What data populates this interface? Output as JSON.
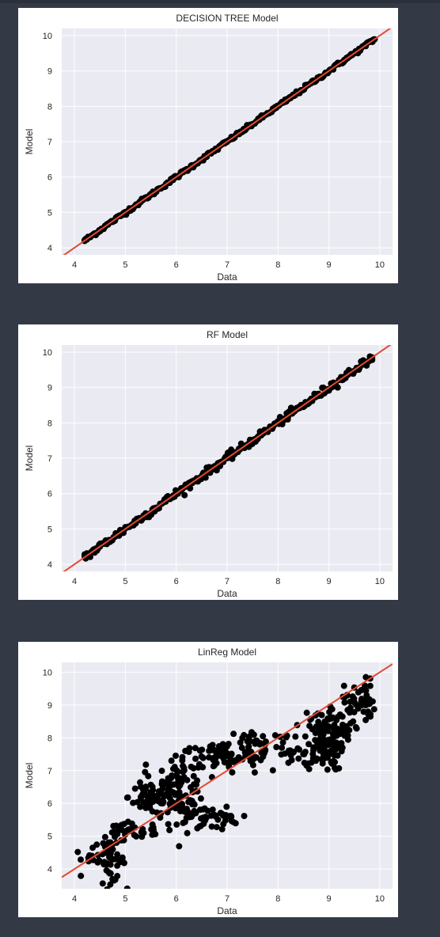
{
  "chart_data": [
    {
      "type": "scatter",
      "title": "DECISION TREE Model",
      "xlabel": "Data",
      "ylabel": "Model",
      "xlim": [
        3.75,
        10.25
      ],
      "ylim": [
        3.8,
        10.2
      ],
      "xticks": [
        "4",
        "5",
        "6",
        "7",
        "8",
        "9",
        "10"
      ],
      "yticks": [
        "4",
        "5",
        "6",
        "7",
        "8",
        "9",
        "10"
      ],
      "grid": true,
      "reference_line": {
        "slope": 1,
        "intercept": 0,
        "color": "#e24a33"
      },
      "point_color": "#000000",
      "segments": [
        {
          "x0": 4.2,
          "x1": 9.9,
          "spread": 0.03,
          "n": 260
        }
      ],
      "series": [
        {
          "x": [
            4.2,
            4.4,
            4.6,
            4.8,
            5.0,
            5.2,
            5.5,
            5.8,
            6.0,
            6.2,
            6.5,
            6.8,
            7.0,
            7.3,
            7.6,
            7.9,
            8.1,
            8.4,
            8.7,
            9.0,
            9.3,
            9.6,
            9.85
          ],
          "y": [
            4.22,
            4.38,
            4.62,
            4.79,
            5.01,
            5.2,
            5.49,
            5.81,
            6.0,
            6.21,
            6.49,
            6.8,
            7.01,
            7.29,
            7.6,
            7.9,
            8.1,
            8.41,
            8.69,
            9.0,
            9.31,
            9.6,
            9.86
          ]
        }
      ]
    },
    {
      "type": "scatter",
      "title": "RF Model",
      "xlabel": "Data",
      "ylabel": "Model",
      "xlim": [
        3.75,
        10.25
      ],
      "ylim": [
        3.8,
        10.2
      ],
      "xticks": [
        "4",
        "5",
        "6",
        "7",
        "8",
        "9",
        "10"
      ],
      "yticks": [
        "4",
        "5",
        "6",
        "7",
        "8",
        "9",
        "10"
      ],
      "grid": true,
      "reference_line": {
        "slope": 1,
        "intercept": 0,
        "color": "#e24a33"
      },
      "point_color": "#000000",
      "segments": [
        {
          "x0": 4.2,
          "x1": 9.85,
          "spread": 0.06,
          "n": 260
        }
      ],
      "series": [
        {
          "x": [
            4.2,
            4.5,
            4.8,
            5.0,
            5.3,
            5.6,
            5.9,
            6.2,
            6.5,
            6.8,
            7.0,
            7.3,
            7.6,
            7.9,
            8.2,
            8.5,
            8.8,
            9.0,
            9.3,
            9.6,
            9.85
          ],
          "y": [
            4.28,
            4.5,
            4.78,
            5.05,
            5.28,
            5.58,
            5.88,
            6.2,
            6.48,
            6.75,
            7.0,
            7.3,
            7.6,
            7.88,
            8.18,
            8.45,
            8.82,
            8.95,
            9.28,
            9.55,
            9.78
          ]
        }
      ]
    },
    {
      "type": "scatter",
      "title": "LinReg Model",
      "xlabel": "Data",
      "ylabel": "Model",
      "xlim": [
        3.75,
        10.25
      ],
      "ylim": [
        3.4,
        10.3
      ],
      "xticks": [
        "4",
        "5",
        "6",
        "7",
        "8",
        "9",
        "10"
      ],
      "yticks": [
        "4",
        "5",
        "6",
        "7",
        "8",
        "9",
        "10"
      ],
      "grid": true,
      "reference_line": {
        "slope": 1,
        "intercept": 0,
        "color": "#e24a33"
      },
      "point_color": "#000000",
      "clusters": [
        {
          "cx": 4.25,
          "cy": 4.3,
          "sx": 0.12,
          "sy": 0.15,
          "n": 10
        },
        {
          "cx": 4.7,
          "cy": 4.3,
          "sx": 0.15,
          "sy": 0.35,
          "n": 45
        },
        {
          "cx": 5.0,
          "cy": 5.05,
          "sx": 0.2,
          "sy": 0.2,
          "n": 20
        },
        {
          "cx": 5.5,
          "cy": 6.2,
          "sx": 0.22,
          "sy": 0.3,
          "n": 60
        },
        {
          "cx": 5.3,
          "cy": 5.1,
          "sx": 0.35,
          "sy": 0.15,
          "n": 14
        },
        {
          "cx": 6.1,
          "cy": 6.5,
          "sx": 0.25,
          "sy": 0.45,
          "n": 90
        },
        {
          "cx": 6.2,
          "cy": 5.7,
          "sx": 0.25,
          "sy": 0.25,
          "n": 40
        },
        {
          "cx": 6.75,
          "cy": 5.55,
          "sx": 0.25,
          "sy": 0.15,
          "n": 30
        },
        {
          "cx": 6.85,
          "cy": 7.4,
          "sx": 0.35,
          "sy": 0.25,
          "n": 60
        },
        {
          "cx": 7.6,
          "cy": 7.8,
          "sx": 0.3,
          "sy": 0.3,
          "n": 40
        },
        {
          "cx": 8.2,
          "cy": 7.5,
          "sx": 0.25,
          "sy": 0.3,
          "n": 25
        },
        {
          "cx": 8.9,
          "cy": 7.9,
          "sx": 0.2,
          "sy": 0.45,
          "n": 110
        },
        {
          "cx": 9.6,
          "cy": 9.1,
          "sx": 0.15,
          "sy": 0.35,
          "n": 50
        },
        {
          "cx": 9.2,
          "cy": 8.3,
          "sx": 0.2,
          "sy": 0.3,
          "n": 30
        }
      ]
    }
  ]
}
